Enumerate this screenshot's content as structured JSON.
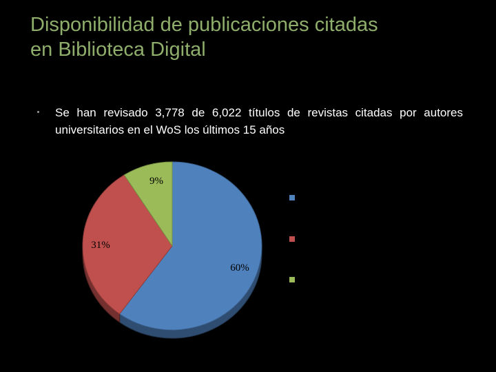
{
  "slide": {
    "title_line1": "Disponibilidad de publicaciones citadas",
    "title_line2": "en Biblioteca Digital",
    "bullet": "Se han revisado 3,778 de 6,022 títulos de revistas citadas por autores universitarios en el WoS los últimos 15 años"
  },
  "colors": {
    "title": "#8fae6b",
    "background": "#000000",
    "text": "#ffffff"
  },
  "chart_data": {
    "type": "pie",
    "values": [
      60,
      31,
      9
    ],
    "labels": [
      "60%",
      "31%",
      "9%"
    ],
    "colors": [
      "#4f81bd",
      "#c0504d",
      "#9bbb59"
    ],
    "legend_placement": "right",
    "legend_entries": [
      "",
      "",
      ""
    ]
  }
}
